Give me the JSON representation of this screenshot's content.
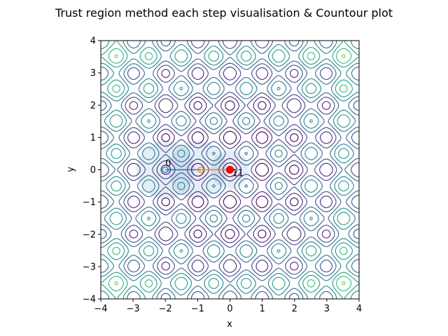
{
  "chart_data": {
    "type": "contour",
    "title": "Trust region method each step visualisation & Countour plot",
    "xlabel": "x",
    "ylabel": "y",
    "xlim": [
      -4,
      4
    ],
    "ylim": [
      -4,
      4
    ],
    "xticks": [
      "−4",
      "−3",
      "−2",
      "−1",
      "0",
      "1",
      "2",
      "3",
      "4"
    ],
    "yticks": [
      "−4",
      "−3",
      "−2",
      "−1",
      "0",
      "1",
      "2",
      "3",
      "4"
    ],
    "grid": false,
    "legend": "none",
    "contour_colormap": "viridis",
    "contour_level_count": 10,
    "contour_field_note": "Rastrigin-like multimodal surface, minimum at origin",
    "trust_regions": [
      {
        "center": [
          -2,
          0
        ],
        "radius": 0.9
      },
      {
        "center": [
          -1,
          0
        ],
        "radius": 0.9
      },
      {
        "center": [
          0,
          0
        ],
        "radius": 0.6
      }
    ],
    "steps": [
      {
        "x": -2,
        "y": 0,
        "label": "0",
        "color": "#1f77b4"
      },
      {
        "x": -0.9,
        "y": 0,
        "label": "",
        "color": "#ff7f0e"
      },
      {
        "x": 0,
        "y": 0,
        "label": "11",
        "color": "#ff0000"
      }
    ],
    "colors": {
      "trust_region_fill": "#1f77b4",
      "path_first": "#1f77b4",
      "path_second": "#ff7f0e",
      "final_point": "#ff0000"
    }
  }
}
